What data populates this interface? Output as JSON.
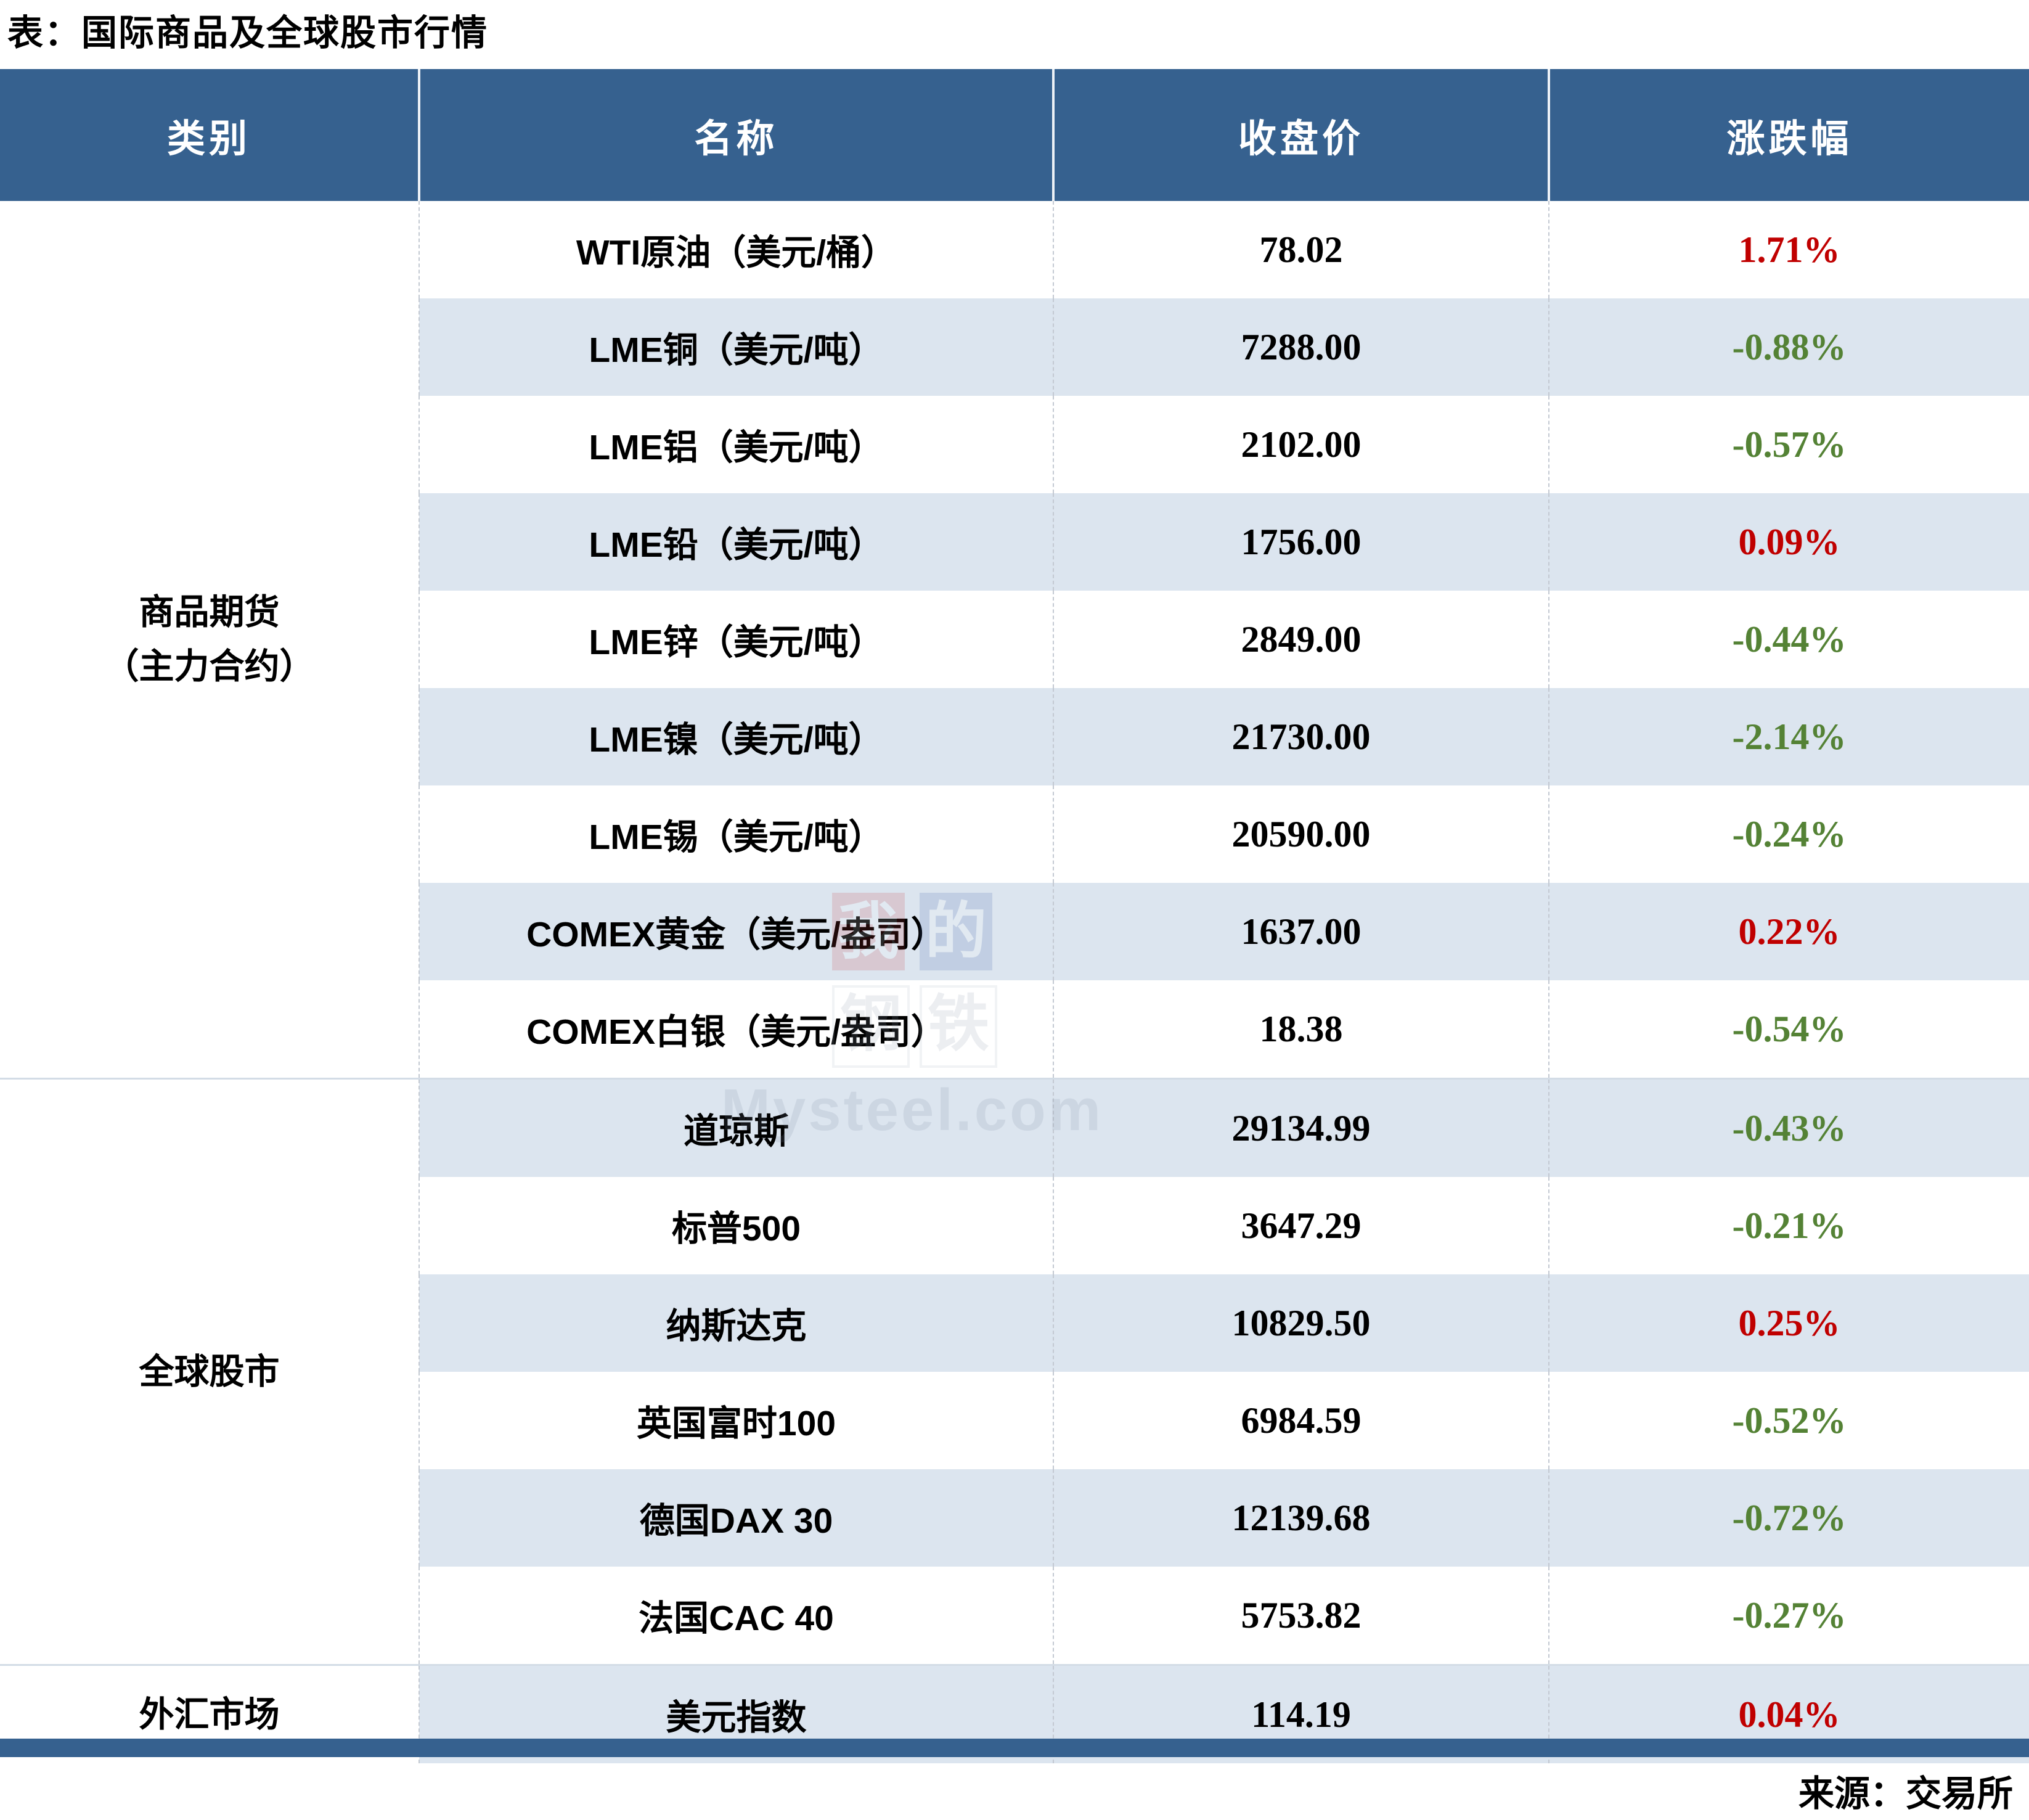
{
  "title": "表：国际商品及全球股市行情",
  "table": {
    "headers": {
      "category": "类别",
      "name": "名称",
      "close": "收盘价",
      "change": "涨跌幅"
    },
    "categories": [
      {
        "label": "商品期货\n（主力合约）",
        "rowspan": 9
      },
      {
        "label": "全球股市",
        "rowspan": 6
      },
      {
        "label": "外汇市场",
        "rowspan": 1
      }
    ],
    "rows": [
      {
        "name": "WTI原油（美元/桶）",
        "close": "78.02",
        "change": "1.71%",
        "dir": "up"
      },
      {
        "name": "LME铜（美元/吨）",
        "close": "7288.00",
        "change": "-0.88%",
        "dir": "down"
      },
      {
        "name": "LME铝（美元/吨）",
        "close": "2102.00",
        "change": "-0.57%",
        "dir": "down"
      },
      {
        "name": "LME铅（美元/吨）",
        "close": "1756.00",
        "change": "0.09%",
        "dir": "up"
      },
      {
        "name": "LME锌（美元/吨）",
        "close": "2849.00",
        "change": "-0.44%",
        "dir": "down"
      },
      {
        "name": "LME镍（美元/吨）",
        "close": "21730.00",
        "change": "-2.14%",
        "dir": "down"
      },
      {
        "name": "LME锡（美元/吨）",
        "close": "20590.00",
        "change": "-0.24%",
        "dir": "down"
      },
      {
        "name": "COMEX黄金（美元/盎司）",
        "close": "1637.00",
        "change": "0.22%",
        "dir": "up"
      },
      {
        "name": "COMEX白银（美元/盎司）",
        "close": "18.38",
        "change": "-0.54%",
        "dir": "down"
      },
      {
        "name": "道琼斯",
        "close": "29134.99",
        "change": "-0.43%",
        "dir": "down"
      },
      {
        "name": "标普500",
        "close": "3647.29",
        "change": "-0.21%",
        "dir": "down"
      },
      {
        "name": "纳斯达克",
        "close": "10829.50",
        "change": "0.25%",
        "dir": "up"
      },
      {
        "name": "英国富时100",
        "close": "6984.59",
        "change": "-0.52%",
        "dir": "down"
      },
      {
        "name": "德国DAX 30",
        "close": "12139.68",
        "change": "-0.72%",
        "dir": "down"
      },
      {
        "name": "法国CAC 40",
        "close": "5753.82",
        "change": "-0.27%",
        "dir": "down"
      },
      {
        "name": "美元指数",
        "close": "114.19",
        "change": "0.04%",
        "dir": "up"
      }
    ]
  },
  "footer": {
    "source": "来源：交易所"
  },
  "watermark": {
    "logo_chars": [
      "我",
      "的",
      "钢",
      "铁"
    ],
    "site": "Mysteel.com"
  },
  "colors": {
    "header_bg": "#36618F",
    "row_stripe": "#DCE5EF",
    "up_red": "#C00000",
    "down_green": "#548235",
    "bottom_bar": "#36618F"
  },
  "chart_data": {
    "type": "table",
    "title": "表：国际商品及全球股市行情",
    "columns": [
      "类别",
      "名称",
      "收盘价",
      "涨跌幅"
    ],
    "groups": [
      {
        "category": "商品期货（主力合约）",
        "rows": [
          [
            "WTI原油（美元/桶）",
            78.02,
            "1.71%"
          ],
          [
            "LME铜（美元/吨）",
            7288.0,
            "-0.88%"
          ],
          [
            "LME铝（美元/吨）",
            2102.0,
            "-0.57%"
          ],
          [
            "LME铅（美元/吨）",
            1756.0,
            "0.09%"
          ],
          [
            "LME锌（美元/吨）",
            2849.0,
            "-0.44%"
          ],
          [
            "LME镍（美元/吨）",
            21730.0,
            "-2.14%"
          ],
          [
            "LME锡（美元/吨）",
            20590.0,
            "-0.24%"
          ],
          [
            "COMEX黄金（美元/盎司）",
            1637.0,
            "0.22%"
          ],
          [
            "COMEX白银（美元/盎司）",
            18.38,
            "-0.54%"
          ]
        ]
      },
      {
        "category": "全球股市",
        "rows": [
          [
            "道琼斯",
            29134.99,
            "-0.43%"
          ],
          [
            "标普500",
            3647.29,
            "-0.21%"
          ],
          [
            "纳斯达克",
            10829.5,
            "0.25%"
          ],
          [
            "英国富时100",
            6984.59,
            "-0.52%"
          ],
          [
            "德国DAX 30",
            12139.68,
            "-0.72%"
          ],
          [
            "法国CAC 40",
            5753.82,
            "-0.27%"
          ]
        ]
      },
      {
        "category": "外汇市场",
        "rows": [
          [
            "美元指数",
            114.19,
            "0.04%"
          ]
        ]
      }
    ],
    "source": "来源：交易所",
    "color_convention": "red = rise (up), green = fall (down)"
  }
}
